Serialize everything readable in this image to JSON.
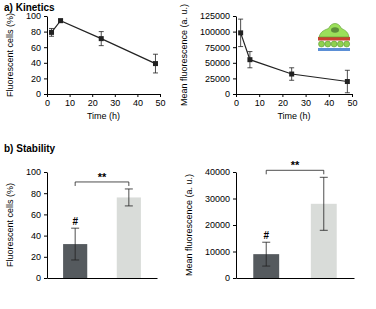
{
  "chart_data": [
    {
      "type": "line",
      "title": "a) Kinetics",
      "x_label": "Time (h)",
      "y_label": "Fluorescent cells (%)",
      "x": [
        2,
        6,
        24,
        48
      ],
      "series": [
        {
          "values": [
            79,
            94,
            71,
            39
          ],
          "errors": [
            5,
            2,
            9,
            12
          ],
          "color": "#222222",
          "marker": "square"
        }
      ],
      "xlim": [
        0,
        50
      ],
      "xticks": [
        0,
        10,
        20,
        30,
        40,
        50
      ],
      "ylim": [
        0,
        100
      ],
      "yticks": [
        0,
        20,
        40,
        60,
        80,
        100
      ]
    },
    {
      "type": "line",
      "x_label": "Time (h)",
      "y_label": "Mean fluorescence (a. u.)",
      "x": [
        2,
        6,
        24,
        48
      ],
      "series": [
        {
          "values": [
            98000,
            55000,
            32000,
            20000
          ],
          "errors": [
            22000,
            13000,
            10000,
            18000
          ],
          "color": "#222222",
          "marker": "square"
        }
      ],
      "xlim": [
        0,
        50
      ],
      "xticks": [
        0,
        10,
        20,
        30,
        40,
        50
      ],
      "ylim": [
        0,
        125000
      ],
      "yticks": [
        0,
        25000,
        50000,
        75000,
        100000,
        125000
      ]
    },
    {
      "type": "bar",
      "title": "b) Stability",
      "y_label": "Fluorescent cells (%)",
      "categories": [
        null,
        null
      ],
      "values": [
        32,
        76
      ],
      "errors": [
        15,
        8
      ],
      "colors": [
        "#555a5e",
        "#d9dcd9"
      ],
      "ylim": [
        0,
        100
      ],
      "yticks": [
        0,
        20,
        40,
        60,
        80,
        100
      ],
      "annotations": [
        "**",
        "#"
      ]
    },
    {
      "type": "bar",
      "y_label": "Mean fluorescence (a. u.)",
      "categories": [
        null,
        null
      ],
      "values": [
        9000,
        28000
      ],
      "errors": [
        4500,
        10000
      ],
      "colors": [
        "#555a5e",
        "#d9dcd9"
      ],
      "ylim": [
        0,
        40000
      ],
      "yticks": [
        0,
        10000,
        20000,
        30000,
        40000
      ],
      "annotations": [
        "**",
        "#"
      ]
    }
  ]
}
